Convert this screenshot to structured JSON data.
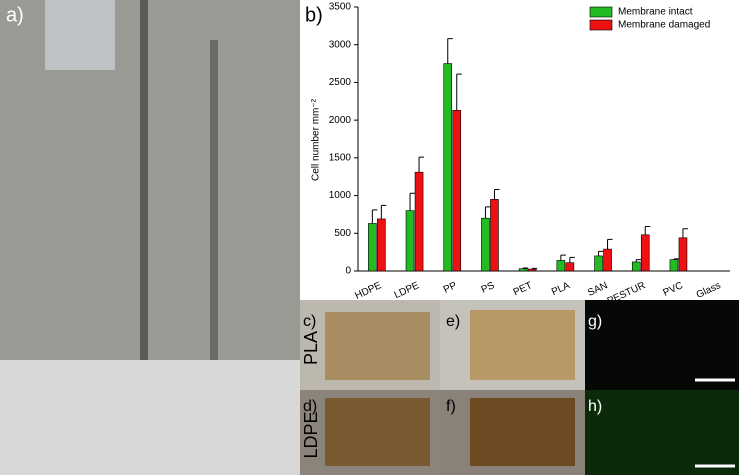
{
  "panels": {
    "a": "a)",
    "b": "b)",
    "c": "c)",
    "d": "d)",
    "e": "e)",
    "f": "f)",
    "g": "g)",
    "h": "h)",
    "row1": "PLA",
    "row2": "LDPE"
  },
  "chart_data": {
    "type": "bar",
    "ylabel": "Cell number mm⁻²",
    "categories": [
      "HDPE",
      "LDPE",
      "PP",
      "PS",
      "PET",
      "PLA",
      "SAN",
      "PESTUR",
      "PVC",
      "Glass"
    ],
    "series": [
      {
        "name": "Membrane intact",
        "color": "#22bb22",
        "values": [
          630,
          800,
          2750,
          700,
          30,
          140,
          200,
          120,
          150,
          0
        ],
        "errors": [
          180,
          230,
          330,
          150,
          10,
          70,
          60,
          30,
          10,
          0
        ]
      },
      {
        "name": "Membrane damaged",
        "color": "#ee1111",
        "values": [
          690,
          1310,
          2130,
          950,
          25,
          110,
          290,
          480,
          440,
          0
        ],
        "errors": [
          180,
          200,
          480,
          130,
          10,
          70,
          130,
          110,
          120,
          0
        ]
      }
    ],
    "ylim": [
      0,
      3500
    ],
    "yticks": [
      0,
      500,
      1000,
      1500,
      2000,
      2500,
      3000,
      3500
    ]
  }
}
